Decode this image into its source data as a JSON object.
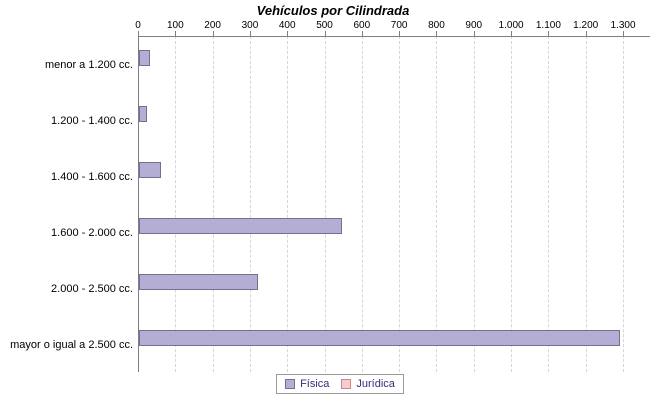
{
  "chart_data": {
    "type": "bar",
    "orientation": "horizontal",
    "title": "Vehículos por Cilindrada",
    "categories": [
      "menor a 1.200 cc.",
      "1.200 - 1.400 cc.",
      "1.400 - 1.600 cc.",
      "1.600 - 2.000 cc.",
      "2.000 - 2.500 cc.",
      "mayor o igual a 2.500 cc."
    ],
    "series": [
      {
        "name": "Física",
        "values": [
          30,
          22,
          60,
          545,
          318,
          1290
        ],
        "fill": "#b5aed4",
        "border": "#75708f"
      },
      {
        "name": "Jurídica",
        "values": [
          0,
          0,
          0,
          0,
          0,
          0
        ],
        "fill": "#f8caca",
        "border": "#bb8f8f"
      }
    ],
    "xlim": [
      0,
      1300
    ],
    "x_ticks": [
      {
        "label": "0",
        "value": 0
      },
      {
        "label": "100",
        "value": 100
      },
      {
        "label": "200",
        "value": 200
      },
      {
        "label": "300",
        "value": 300
      },
      {
        "label": "400",
        "value": 400
      },
      {
        "label": "500",
        "value": 500
      },
      {
        "label": "600",
        "value": 600
      },
      {
        "label": "700",
        "value": 700
      },
      {
        "label": "800",
        "value": 800
      },
      {
        "label": "900",
        "value": 900
      },
      {
        "label": "1.000",
        "value": 1000
      },
      {
        "label": "1.100",
        "value": 1100
      },
      {
        "label": "1.200",
        "value": 1200
      },
      {
        "label": "1.300",
        "value": 1300
      }
    ],
    "grid": "vertical-dashed",
    "legend_position": "bottom",
    "colors": {
      "axis": "#7f7f7f",
      "grid": "#d6d6d6",
      "legend_border": "#9a9a9a",
      "legend_text": "#3a2a7e",
      "background": "#ffffff",
      "title": "#000000"
    }
  }
}
